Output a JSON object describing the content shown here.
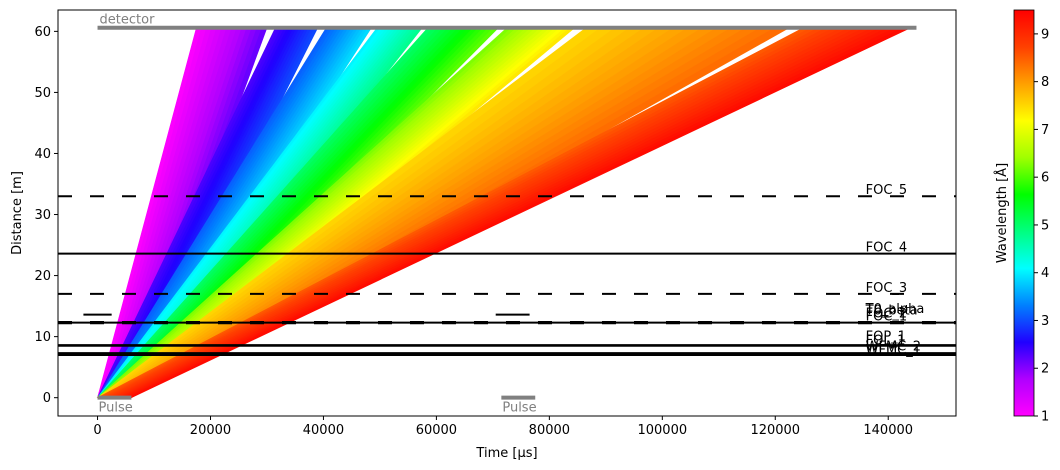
{
  "chart_data": {
    "type": "line",
    "xlabel": "Time [μs]",
    "ylabel": "Distance [m]",
    "xlim": [
      -7000,
      152000
    ],
    "ylim": [
      -3,
      63.5
    ],
    "xticks": [
      0,
      20000,
      40000,
      60000,
      80000,
      100000,
      120000,
      140000
    ],
    "yticks": [
      0,
      10,
      20,
      30,
      40,
      50,
      60
    ],
    "colorbar": {
      "label": "Wavelength [Å]",
      "range": [
        1,
        9.5
      ],
      "ticks": [
        1,
        2,
        3,
        4,
        5,
        6,
        7,
        8,
        9
      ],
      "colormap": [
        "#ff00ff",
        "#b000ff",
        "#2000ff",
        "#0080ff",
        "#00ffff",
        "#00ff80",
        "#00ff00",
        "#a0ff00",
        "#ffff00",
        "#ffa000",
        "#ff4000",
        "#ff0000"
      ]
    },
    "detector": {
      "label": "detector",
      "distance": 60.6,
      "t_start": 0,
      "t_end": 145000,
      "color": "#808080"
    },
    "pulses": [
      {
        "label": "Pulse",
        "t_start": 0,
        "t_end": 6000
      },
      {
        "label": "Pulse",
        "t_start": 71500,
        "t_end": 77500
      }
    ],
    "rays": {
      "source_t_start": 0,
      "source_t_end": 6000,
      "detector_distance": 60.6,
      "bands": [
        {
          "t_start": 17500,
          "t_end": 30000,
          "w_start": 1.0,
          "w_end": 2.2
        },
        {
          "t_start": 31500,
          "t_end": 39000,
          "w_start": 2.3,
          "w_end": 3.0
        },
        {
          "t_start": 40500,
          "t_end": 48500,
          "w_start": 3.1,
          "w_end": 3.9
        },
        {
          "t_start": 49500,
          "t_end": 57500,
          "w_start": 4.0,
          "w_end": 4.8
        },
        {
          "t_start": 58500,
          "t_end": 71000,
          "w_start": 5.0,
          "w_end": 6.1
        },
        {
          "t_start": 72500,
          "t_end": 84500,
          "w_start": 6.2,
          "w_end": 7.4
        },
        {
          "t_start": 86500,
          "t_end": 122500,
          "w_start": 7.5,
          "w_end": 8.4
        },
        {
          "t_start": 125000,
          "t_end": 144000,
          "w_start": 8.5,
          "w_end": 9.4
        }
      ]
    },
    "choppers": [
      {
        "label": "WFMC_1",
        "distance": 7.0,
        "style": "solid",
        "label_distance": 7.8
      },
      {
        "label": "WFMC_2",
        "distance": 7.3,
        "style": "solid",
        "label_distance": 8.4
      },
      {
        "label": "FOL_1",
        "distance": 8.5,
        "style": "solid",
        "label_distance": 9.4
      },
      {
        "label": "FOP_1",
        "distance": 8.6,
        "style": "solid",
        "label_distance": 10.0
      },
      {
        "label": "FOC_1",
        "distance": 12.2,
        "style": "dashed",
        "label_distance": 13.3
      },
      {
        "label": "FOC_2",
        "distance": 12.3,
        "style": "solid",
        "label_distance": 13.8
      },
      {
        "label": "T0_alpha",
        "distance": 13.6,
        "style": "short",
        "label_distance": 14.5
      },
      {
        "label": "T0_beta",
        "distance": 12.4,
        "style": "dashed",
        "label_distance": 14.3
      },
      {
        "label": "FOC_3",
        "distance": 17.0,
        "style": "dashed",
        "label_distance": 18.0
      },
      {
        "label": "FOC_4",
        "distance": 23.6,
        "style": "solid",
        "label_distance": 24.6
      },
      {
        "label": "FOC_5",
        "distance": 33.0,
        "style": "dashed",
        "label_distance": 34.0
      }
    ]
  }
}
